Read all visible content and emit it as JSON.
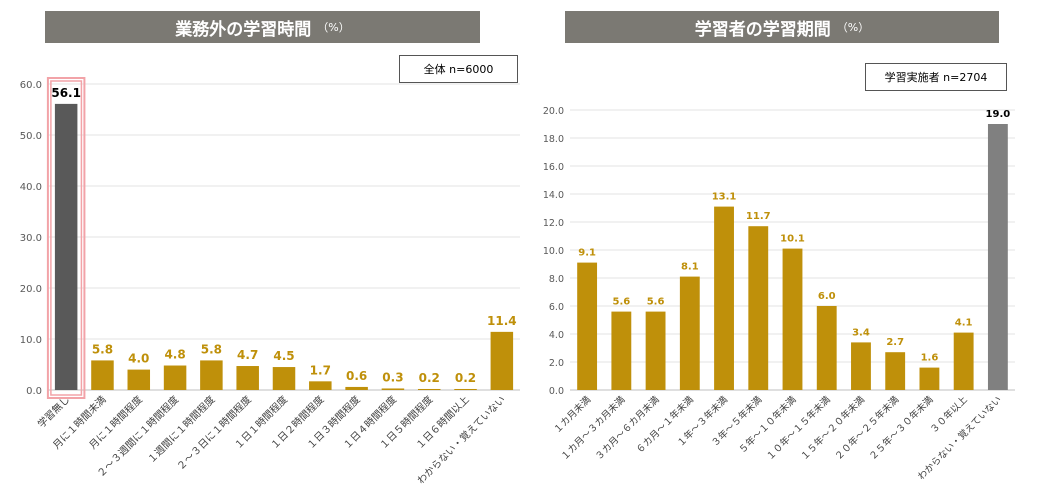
{
  "colors": {
    "bar": "#bf900a",
    "bar_left_highlight": "#595959",
    "bar_right_highlight": "#808080",
    "highlight_border": "#f2a3a8",
    "title_bg": "#7b7973",
    "grid": "#e3e3e3"
  },
  "chart_data": [
    {
      "type": "bar",
      "title": "業務外の学習時間",
      "title_unit": "（%）",
      "sample_label": "全体 n=6000",
      "ylim": [
        0,
        60
      ],
      "yticks": [
        "0.0",
        "10.0",
        "20.0",
        "30.0",
        "40.0",
        "50.0",
        "60.0"
      ],
      "categories": [
        "学習無し",
        "月に１時間未満",
        "月に１時間程度",
        "２～３週間に１時間程度",
        "１週間に１時間程度",
        "２～３日に１時間程度",
        "１日１時間程度",
        "１日２時間程度",
        "１日３時間程度",
        "１日４時間程度",
        "１日５時間程度",
        "１日６時間以上",
        "わからない・覚えていない"
      ],
      "values": [
        56.1,
        5.8,
        4.0,
        4.8,
        5.8,
        4.7,
        4.5,
        1.7,
        0.6,
        0.3,
        0.2,
        0.2,
        11.4
      ],
      "value_labels": [
        "56.1",
        "5.8",
        "4.0",
        "4.8",
        "5.8",
        "4.7",
        "4.5",
        "1.7",
        "0.6",
        "0.3",
        "0.2",
        "0.2",
        "11.4"
      ],
      "highlight_index": 0
    },
    {
      "type": "bar",
      "title": "学習者の学習期間",
      "title_unit": "（%）",
      "sample_label": "学習実施者 n=2704",
      "ylim": [
        0,
        20
      ],
      "yticks": [
        "0.0",
        "2.0",
        "4.0",
        "6.0",
        "8.0",
        "10.0",
        "12.0",
        "14.0",
        "16.0",
        "18.0",
        "20.0"
      ],
      "categories": [
        "１カ月未満",
        "１カ月～３カ月未満",
        "３カ月～６カ月未満",
        "６カ月～１年未満",
        "１年～３年未満",
        "３年～５年未満",
        "５年～１０年未満",
        "１０年～１５年未満",
        "１５年～２０年未満",
        "２０年～２５年未満",
        "２５年～３０年未満",
        "３０年以上",
        "わからない・覚えていない"
      ],
      "values": [
        9.1,
        5.6,
        5.6,
        8.1,
        13.1,
        11.7,
        10.1,
        6.0,
        3.4,
        2.7,
        1.6,
        4.1,
        19.0
      ],
      "value_labels": [
        "9.1",
        "5.6",
        "5.6",
        "8.1",
        "13.1",
        "11.7",
        "10.1",
        "6.0",
        "3.4",
        "2.7",
        "1.6",
        "4.1",
        "19.0"
      ],
      "highlight_index": 12
    }
  ]
}
